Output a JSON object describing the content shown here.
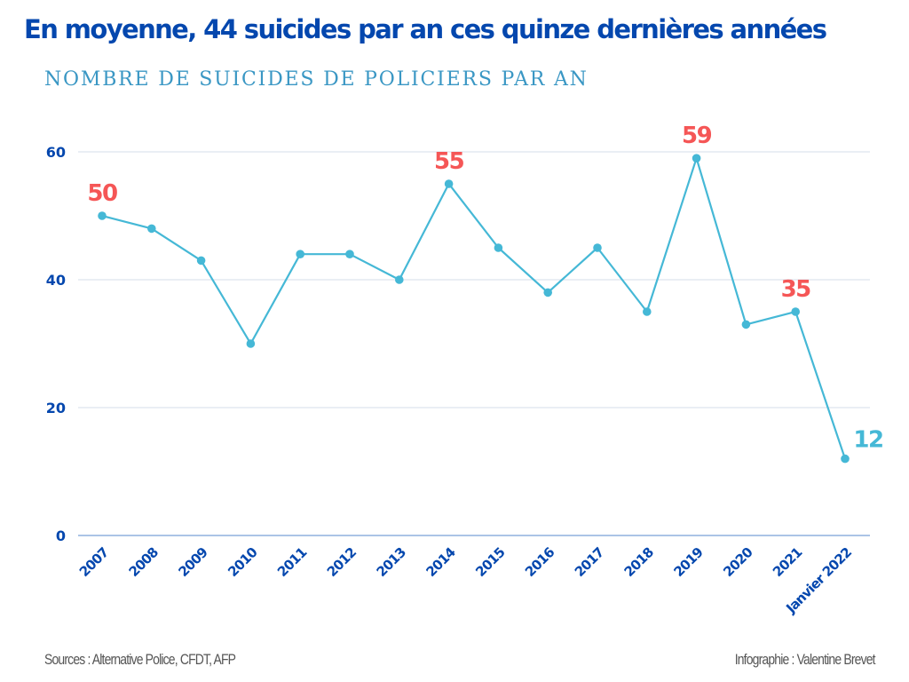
{
  "header": {
    "title": "En moyenne, 44 suicides par an ces quinze dernières années",
    "subtitle": "NOMBRE DE SUICIDES DE POLICIERS PAR AN"
  },
  "footer": {
    "sources": "Sources : Alternative Police, CFDT, AFP",
    "credit": "Infographie : Valentine Brevet"
  },
  "colors": {
    "title": "#0447ae",
    "subtitle": "#3a97c4",
    "line": "#45b8d6",
    "highlight_label": "#f55656",
    "last_label": "#45b8d6",
    "axis_text": "#0447ae",
    "grid": "#dde3ee",
    "baseline": "#8fb0dd"
  },
  "chart_data": {
    "type": "line",
    "title": "En moyenne, 44 suicides par an ces quinze dernières années",
    "subtitle": "NOMBRE DE SUICIDES DE POLICIERS PAR AN",
    "xlabel": "",
    "ylabel": "",
    "categories": [
      "2007",
      "2008",
      "2009",
      "2010",
      "2011",
      "2012",
      "2013",
      "2014",
      "2015",
      "2016",
      "2017",
      "2018",
      "2019",
      "2020",
      "2021",
      "Janvier 2022"
    ],
    "series": [
      {
        "name": "Suicides de policiers",
        "values": [
          50,
          48,
          43,
          30,
          44,
          44,
          40,
          55,
          45,
          38,
          45,
          35,
          59,
          33,
          35,
          12
        ]
      }
    ],
    "ylim": [
      0,
      60
    ],
    "yticks": [
      0,
      20,
      40,
      60
    ],
    "grid": true,
    "legend": "none",
    "data_labels": [
      {
        "category": "2007",
        "value": 50,
        "text": "50",
        "color": "#f55656"
      },
      {
        "category": "2014",
        "value": 55,
        "text": "55",
        "color": "#f55656"
      },
      {
        "category": "2019",
        "value": 59,
        "text": "59",
        "color": "#f55656"
      },
      {
        "category": "2021",
        "value": 35,
        "text": "35",
        "color": "#f55656"
      },
      {
        "category": "Janvier 2022",
        "value": 12,
        "text": "12",
        "color": "#45b8d6"
      }
    ]
  }
}
